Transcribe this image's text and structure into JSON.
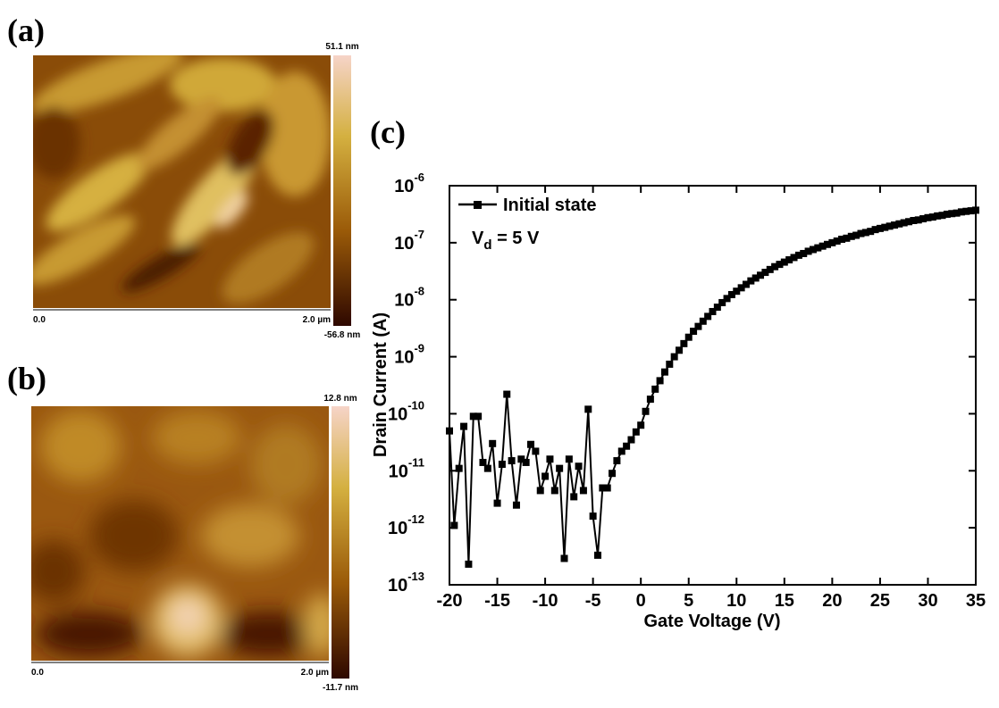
{
  "afm_images": [
    {
      "label": "(a)",
      "max": "51.1 nm",
      "min": "-56.8 nm",
      "x_start": "0.0",
      "x_end": "2.0 µm"
    },
    {
      "label": "(b)",
      "max": "12.8 nm",
      "min": "-11.7 nm",
      "x_start": "0.0",
      "x_end": "2.0 µm"
    }
  ],
  "chart_data": {
    "type": "line",
    "panel_label": "(c)",
    "x_label": "Gate Voltage (V)",
    "y_label": "Drain Current (A)",
    "yscale": "log",
    "legend_position": "upper left",
    "annotation": {
      "text": "V",
      "subscript": "d",
      "suffix": " = 5 V"
    },
    "xlim": [
      -20,
      35
    ],
    "xticks": [
      -20,
      -15,
      -10,
      -5,
      0,
      5,
      10,
      15,
      20,
      25,
      30,
      35
    ],
    "ylim": [
      1e-13,
      1e-06
    ],
    "yticks": [
      {
        "value": 1e-13,
        "label": "10",
        "exponent": "-13"
      },
      {
        "value": 1e-12,
        "label": "10",
        "exponent": "-12"
      },
      {
        "value": 1e-11,
        "label": "10",
        "exponent": "-11"
      },
      {
        "value": 1e-10,
        "label": "10",
        "exponent": "-10"
      },
      {
        "value": 1e-09,
        "label": "10",
        "exponent": "-9"
      },
      {
        "value": 1e-08,
        "label": "10",
        "exponent": "-8"
      },
      {
        "value": 1e-07,
        "label": "10",
        "exponent": "-7"
      },
      {
        "value": 1e-06,
        "label": "10",
        "exponent": "-6"
      }
    ],
    "x": [
      -20,
      -19.5,
      -19,
      -18.5,
      -18,
      -17.5,
      -17,
      -16.5,
      -16,
      -15.5,
      -15,
      -14.5,
      -14,
      -13.5,
      -13,
      -12.5,
      -12,
      -11.5,
      -11,
      -10.5,
      -10,
      -9.5,
      -9,
      -8.5,
      -8,
      -7.5,
      -7,
      -6.5,
      -6,
      -5.5,
      -5,
      -4.5,
      -4,
      -3.5,
      -3,
      -2.5,
      -2,
      -1.5,
      -1,
      -0.5,
      0,
      0.5,
      1,
      1.5,
      2,
      2.5,
      3,
      3.5,
      4,
      4.5,
      5,
      5.5,
      6,
      6.5,
      7,
      7.5,
      8,
      8.5,
      9,
      9.5,
      10,
      10.5,
      11,
      11.5,
      12,
      12.5,
      13,
      13.5,
      14,
      14.5,
      15,
      15.5,
      16,
      16.5,
      17,
      17.5,
      18,
      18.5,
      19,
      19.5,
      20,
      20.5,
      21,
      21.5,
      22,
      22.5,
      23,
      23.5,
      24,
      24.5,
      25,
      25.5,
      26,
      26.5,
      27,
      27.5,
      28,
      28.5,
      29,
      29.5,
      30,
      30.5,
      31,
      31.5,
      32,
      32.5,
      33,
      33.5,
      34,
      34.5,
      35
    ],
    "series": [
      {
        "name": "Initial state",
        "color": "#000000",
        "values": [
          5e-11,
          1.1e-12,
          1.1e-11,
          6e-11,
          2.3e-13,
          9e-11,
          9e-11,
          1.4e-11,
          1.1e-11,
          3e-11,
          2.7e-12,
          1.3e-11,
          2.2e-10,
          1.5e-11,
          2.5e-12,
          1.6e-11,
          1.4e-11,
          2.9e-11,
          2.2e-11,
          4.5e-12,
          8e-12,
          1.6e-11,
          4.5e-12,
          1.1e-11,
          2.9e-13,
          1.6e-11,
          3.5e-12,
          1.2e-11,
          4.5e-12,
          1.2e-10,
          1.6e-12,
          3.3e-13,
          5e-12,
          5e-12,
          9e-12,
          1.5e-11,
          2.2e-11,
          2.7e-11,
          3.5e-11,
          4.8e-11,
          6.3e-11,
          1.1e-10,
          1.8e-10,
          2.7e-10,
          3.8e-10,
          5.4e-10,
          7.4e-10,
          1e-09,
          1.3e-09,
          1.7e-09,
          2.2e-09,
          2.8e-09,
          3.4e-09,
          4.2e-09,
          5.1e-09,
          6.2e-09,
          7.4e-09,
          8.9e-09,
          1.05e-08,
          1.23e-08,
          1.41e-08,
          1.62e-08,
          1.86e-08,
          2.14e-08,
          2.4e-08,
          2.69e-08,
          3.02e-08,
          3.39e-08,
          3.8e-08,
          4.17e-08,
          4.57e-08,
          5.01e-08,
          5.5e-08,
          6.03e-08,
          6.46e-08,
          7.08e-08,
          7.59e-08,
          8.13e-08,
          8.71e-08,
          9.33e-08,
          1e-07,
          1.07e-07,
          1.15e-07,
          1.2e-07,
          1.29e-07,
          1.35e-07,
          1.45e-07,
          1.51e-07,
          1.58e-07,
          1.7e-07,
          1.78e-07,
          1.86e-07,
          1.95e-07,
          2.04e-07,
          2.14e-07,
          2.24e-07,
          2.34e-07,
          2.45e-07,
          2.51e-07,
          2.63e-07,
          2.75e-07,
          2.82e-07,
          2.95e-07,
          3.02e-07,
          3.16e-07,
          3.24e-07,
          3.31e-07,
          3.47e-07,
          3.55e-07,
          3.63e-07,
          3.72e-07
        ]
      }
    ]
  }
}
